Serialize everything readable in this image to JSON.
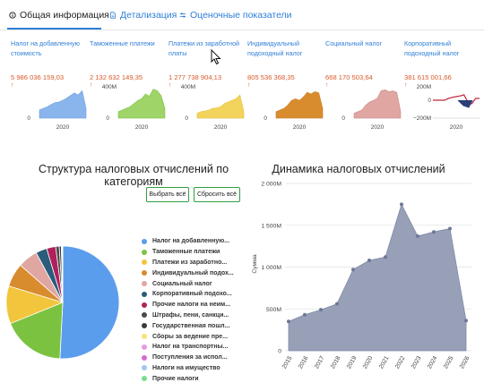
{
  "tabs": [
    {
      "label": "Общая информация",
      "icon": "info-icon"
    },
    {
      "label": "Детализация",
      "icon": "document-icon"
    },
    {
      "label": "Оценочные показатели",
      "icon": "sliders-icon"
    }
  ],
  "cards": [
    {
      "title": "Налог на добавленную стоимость",
      "value": "5 986 036 159,03",
      "color": "#6a9fe0",
      "fill": "#8ab5ec",
      "ymax": "",
      "year": "2020",
      "values": [
        0.25,
        0.3,
        0.35,
        0.42,
        0.48,
        0.5,
        0.55,
        0.62,
        0.7,
        0.78,
        0.72,
        0.85,
        0.3
      ],
      "kind": "area"
    },
    {
      "title": "Таможенные платежи",
      "value": "2 132 632 149,35",
      "color": "#7cc241",
      "fill": "#9ed468",
      "ymax": "400M",
      "year": "2020",
      "values": [
        0.2,
        0.25,
        0.3,
        0.35,
        0.45,
        0.55,
        0.6,
        0.75,
        0.68,
        0.9,
        0.85,
        0.7,
        0.3
      ],
      "kind": "area"
    },
    {
      "title": "Платежи из заработной платы",
      "value": "1 277 738 904,13",
      "color": "#e8c23a",
      "fill": "#f2d35c",
      "ymax": "400M",
      "year": "2020",
      "values": [
        0.15,
        0.2,
        0.22,
        0.25,
        0.3,
        0.32,
        0.35,
        0.45,
        0.5,
        0.55,
        0.6,
        0.72,
        0.2
      ],
      "kind": "area"
    },
    {
      "title": "Индивидуальный подоходный налог",
      "value": "805 536 368,35",
      "color": "#c97b22",
      "fill": "#d98c2d",
      "ymax": "",
      "year": "2020",
      "values": [
        0.2,
        0.25,
        0.3,
        0.4,
        0.55,
        0.6,
        0.55,
        0.65,
        0.8,
        0.75,
        0.82,
        0.78,
        0.3
      ],
      "kind": "area"
    },
    {
      "title": "Социальный налог",
      "value": "668 170 503,64",
      "color": "#cf8a86",
      "fill": "#dfa6a2",
      "ymax": "",
      "year": "2020",
      "values": [
        0.15,
        0.2,
        0.25,
        0.4,
        0.5,
        0.55,
        0.62,
        0.85,
        0.88,
        0.82,
        0.85,
        0.8,
        0.2
      ],
      "kind": "area"
    },
    {
      "title": "Корпоративный подоходный налог",
      "value": "381 615 001,66",
      "color": "#c0243c",
      "fill": "#c0243c",
      "ymax": "200M",
      "ymin": "−200M",
      "year": "2020",
      "values": [
        0.5,
        0.5,
        0.5,
        0.5,
        0.55,
        0.58,
        0.6,
        0.62,
        0.65,
        0.45,
        0.4,
        0.55,
        0.55
      ],
      "kind": "line"
    }
  ],
  "pie_section": {
    "title": "Структура налоговых отчислений по категориям",
    "select_all_label": "Выбрать всё",
    "reset_all_label": "Сбросить всё",
    "chart_data": {
      "type": "pie",
      "slices": [
        {
          "label": "Налог на добавленную...",
          "value": 50.8,
          "color": "#5b9ded"
        },
        {
          "label": "Таможенные платежи",
          "value": 18.1,
          "color": "#7cc241"
        },
        {
          "label": "Платежи из заработно...",
          "value": 10.8,
          "color": "#f2c53d"
        },
        {
          "label": "Индивидуальный подох...",
          "value": 6.8,
          "color": "#d98c2d"
        },
        {
          "label": "Социальный налог",
          "value": 5.7,
          "color": "#dfa6a2"
        },
        {
          "label": "Корпоративный подохо...",
          "value": 3.2,
          "color": "#2b5c7a"
        },
        {
          "label": "Прочие налоги на неим...",
          "value": 2.6,
          "color": "#b0215c"
        },
        {
          "label": "Штрафы, пени, санкци...",
          "value": 1.0,
          "color": "#4a4a4a"
        },
        {
          "label": "Государственная пошл...",
          "value": 0.6,
          "color": "#3b3b3b"
        },
        {
          "label": "Сборы за ведение пре...",
          "value": 0.2,
          "color": "#f4e37a"
        },
        {
          "label": "Налог на транспортны...",
          "value": 0.1,
          "color": "#e79be0"
        },
        {
          "label": "Поступления за испол...",
          "value": 0.05,
          "color": "#d56bd3"
        },
        {
          "label": "Налоги на имущество",
          "value": 0.03,
          "color": "#a3c4f0"
        },
        {
          "label": "Прочие налоги",
          "value": 0.02,
          "color": "#7ddc8e"
        }
      ]
    }
  },
  "line_section": {
    "title": "Динамика налоговых отчислений",
    "chart_data": {
      "type": "area",
      "ylabel": "Сумма",
      "x": [
        "2015",
        "2016",
        "2017",
        "2018",
        "2019",
        "2020",
        "2021",
        "2022",
        "2023",
        "2024",
        "2025",
        "2026"
      ],
      "values": [
        350,
        430,
        490,
        560,
        970,
        1080,
        1120,
        1750,
        1370,
        1420,
        1460,
        360
      ],
      "ylim": [
        0,
        2000
      ],
      "yticks": [
        "0",
        "500M",
        "1 000M",
        "1 500M",
        "2 000M"
      ],
      "color": "#7f89a6",
      "fill": "#98a0b8",
      "grid": true
    }
  }
}
